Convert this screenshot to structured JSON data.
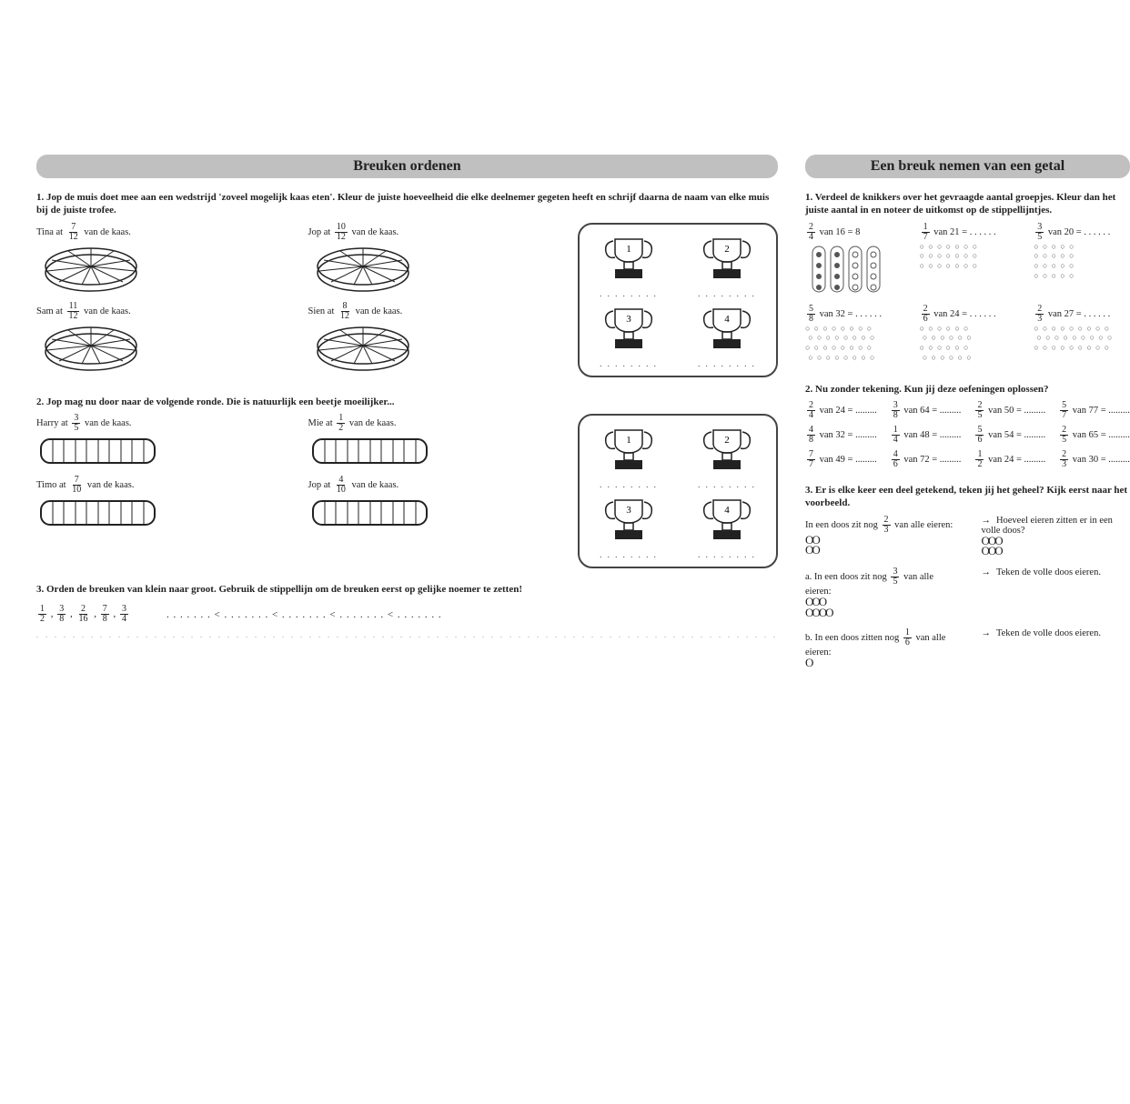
{
  "left": {
    "title": "Breuken ordenen",
    "q1": {
      "prompt": "1. Jop de muis doet mee aan een wedstrijd 'zoveel mogelijk kaas eten'. Kleur de juiste hoeveelheid die elke deelnemer gegeten heeft en schrijf daarna de naam van elke muis bij de juiste trofee.",
      "items": [
        {
          "pre": "Tina at ",
          "num": "7",
          "den": "12",
          "post": " van de kaas."
        },
        {
          "pre": "Jop at ",
          "num": "10",
          "den": "12",
          "post": " van de kaas."
        },
        {
          "pre": "Sam at ",
          "num": "11",
          "den": "12",
          "post": " van de kaas."
        },
        {
          "pre": "Sien at ",
          "num": "8",
          "den": "12",
          "post": " van de kaas."
        }
      ],
      "trophies": [
        "1",
        "2",
        "3",
        "4"
      ],
      "trophy_dots": ". . . . . . . ."
    },
    "q2": {
      "prompt": "2. Jop mag nu door naar de volgende ronde. Die is natuurlijk een beetje moeilijker...",
      "items": [
        {
          "pre": "Harry at ",
          "num": "3",
          "den": "5",
          "post": " van de kaas."
        },
        {
          "pre": "Mie at ",
          "num": "1",
          "den": "2",
          "post": " van de kaas."
        },
        {
          "pre": "Timo at ",
          "num": "7",
          "den": "10",
          "post": " van de kaas."
        },
        {
          "pre": "Jop at ",
          "num": "4",
          "den": "10",
          "post": " van de kaas."
        }
      ],
      "trophies": [
        "1",
        "2",
        "3",
        "4"
      ],
      "trophy_dots": ". . . . . . . ."
    },
    "q3": {
      "prompt": "3. Orden de breuken van klein naar groot. Gebruik de stippellijn om de breuken eerst op gelijke noemer te zetten!",
      "fractions": [
        {
          "n": "1",
          "d": "2"
        },
        {
          "n": "3",
          "d": "8"
        },
        {
          "n": "2",
          "d": "16"
        },
        {
          "n": "7",
          "d": "8"
        },
        {
          "n": "3",
          "d": "4"
        }
      ],
      "answer_line": ". . . . . . . < . . . . . . . < . . . . . . . < . . . . . . . < . . . . . . ."
    }
  },
  "right": {
    "title": "Een breuk nemen van een getal",
    "q1": {
      "prompt": "1. Verdeel de knikkers over het gevraagde aantal groepjes. Kleur dan het juiste aantal in en noteer de uitkomst op de stippellijntjes.",
      "row1": [
        {
          "n": "2",
          "d": "4",
          "van": " van 16 = 8"
        },
        {
          "n": "1",
          "d": "7",
          "van": " van 21 = . . . . . ."
        },
        {
          "n": "3",
          "d": "5",
          "van": " van 20 = . . . . . ."
        }
      ],
      "row2": [
        {
          "n": "5",
          "d": "8",
          "van": " van 32 = . . . . . ."
        },
        {
          "n": "2",
          "d": "6",
          "van": " van 24 = . . . . . ."
        },
        {
          "n": "2",
          "d": "3",
          "van": " van 27 = . . . . . ."
        }
      ]
    },
    "q2": {
      "prompt": "2. Nu zonder tekening. Kun jij deze oefeningen oplossen?",
      "items": [
        {
          "n": "2",
          "d": "4",
          "rest": " van 24 = ........."
        },
        {
          "n": "3",
          "d": "8",
          "rest": " van 64 = ........."
        },
        {
          "n": "2",
          "d": "5",
          "rest": " van 50 = ........."
        },
        {
          "n": "5",
          "d": "7",
          "rest": " van 77 = ........."
        },
        {
          "n": "4",
          "d": "8",
          "rest": " van 32 = ........."
        },
        {
          "n": "1",
          "d": "4",
          "rest": " van 48 = ........."
        },
        {
          "n": "5",
          "d": "6",
          "rest": " van 54 = ........."
        },
        {
          "n": "2",
          "d": "5",
          "rest": " van 65 = ........."
        },
        {
          "n": "7",
          "d": "7",
          "rest": " van 49 = ........."
        },
        {
          "n": "4",
          "d": "6",
          "rest": " van 72 = ........."
        },
        {
          "n": "1",
          "d": "2",
          "rest": " van 24 = ........."
        },
        {
          "n": "2",
          "d": "3",
          "rest": " van 30 = ........."
        }
      ]
    },
    "q3": {
      "prompt": "3. Er is elke keer een deel getekend, teken jij het geheel? Kijk eerst naar het voorbeeld.",
      "ex": {
        "left_pre": "In een doos zit nog ",
        "n": "2",
        "d": "3",
        "left_post": " van alle eieren:",
        "right": "Hoeveel eieren zitten er in een volle doos?",
        "eggs_l1": "OO",
        "eggs_l2": "OO",
        "eggs_r1": "OOO",
        "eggs_r2": "OOO"
      },
      "a": {
        "left_pre": "a. In een doos zit nog ",
        "n": "3",
        "d": "5",
        "left_post": " van alle eieren:",
        "right": "Teken de volle doos eieren.",
        "eggs_l1": "OOO",
        "eggs_l2": "OOOO"
      },
      "b": {
        "left_pre": "b. In een doos zitten nog ",
        "n": "1",
        "d": "6",
        "left_post": " van alle eieren:",
        "right": "Teken de volle doos eieren.",
        "eggs_l1": "O"
      }
    }
  },
  "colors": {
    "title_bg": "#c0c0c0",
    "text": "#222222",
    "page_bg": "#ffffff"
  }
}
